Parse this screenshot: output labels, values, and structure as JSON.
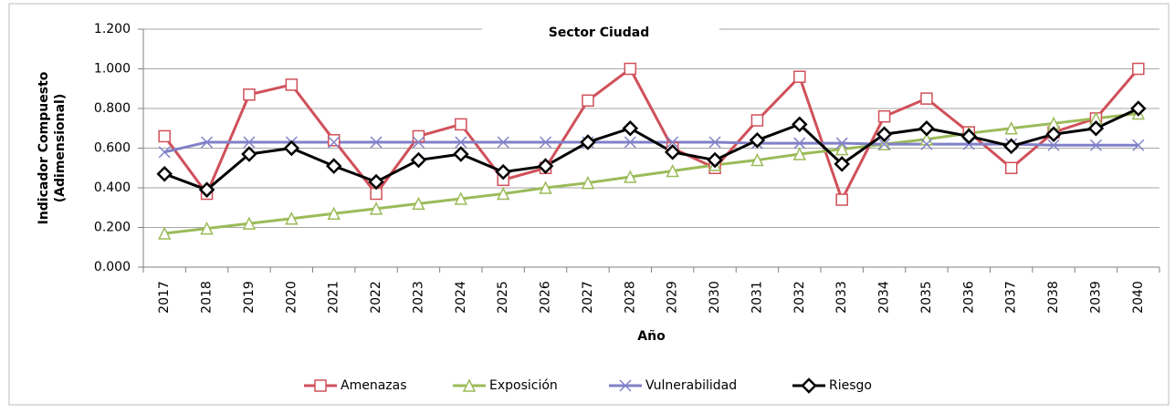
{
  "chart_data": {
    "type": "line",
    "title": "Sector Ciudad",
    "xlabel": "Año",
    "ylabel": [
      "Indicador Compuesto",
      "(Adimensional)"
    ],
    "categories": [
      "2017",
      "2018",
      "2019",
      "2020",
      "2021",
      "2022",
      "2023",
      "2024",
      "2025",
      "2026",
      "2027",
      "2028",
      "2029",
      "2030",
      "2031",
      "2032",
      "2033",
      "2034",
      "2035",
      "2036",
      "2037",
      "2038",
      "2039",
      "2040"
    ],
    "series": [
      {
        "name": "Amenazas",
        "color": "#d0505a",
        "marker": "square",
        "values": [
          0.66,
          0.37,
          0.87,
          0.92,
          0.64,
          0.37,
          0.66,
          0.72,
          0.44,
          0.5,
          0.84,
          1.0,
          0.6,
          0.5,
          0.74,
          0.96,
          0.34,
          0.76,
          0.85,
          0.68,
          0.5,
          0.68,
          0.75,
          1.0
        ]
      },
      {
        "name": "Exposición",
        "color": "#9bbb59",
        "marker": "triangle",
        "values": [
          0.17,
          0.195,
          0.22,
          0.245,
          0.27,
          0.295,
          0.32,
          0.345,
          0.37,
          0.4,
          0.425,
          0.455,
          0.485,
          0.515,
          0.54,
          0.57,
          0.595,
          0.62,
          0.645,
          0.675,
          0.7,
          0.725,
          0.75,
          0.775
        ]
      },
      {
        "name": "Vulnerabilidad",
        "color": "#8080c8",
        "marker": "x",
        "values": [
          0.58,
          0.63,
          0.63,
          0.63,
          0.63,
          0.63,
          0.63,
          0.63,
          0.63,
          0.63,
          0.63,
          0.63,
          0.63,
          0.63,
          0.625,
          0.625,
          0.625,
          0.62,
          0.62,
          0.62,
          0.62,
          0.615,
          0.615,
          0.615
        ]
      },
      {
        "name": "Riesgo",
        "color": "#000000",
        "marker": "diamond",
        "values": [
          0.47,
          0.39,
          0.57,
          0.6,
          0.51,
          0.43,
          0.54,
          0.57,
          0.48,
          0.51,
          0.63,
          0.7,
          0.58,
          0.54,
          0.64,
          0.72,
          0.52,
          0.67,
          0.7,
          0.66,
          0.61,
          0.67,
          0.7,
          0.8
        ]
      }
    ],
    "ylim": [
      0,
      1.2
    ],
    "yticks": [
      {
        "value": 0,
        "label": "0.000"
      },
      {
        "value": 0.2,
        "label": "0.200"
      },
      {
        "value": 0.4,
        "label": "0.400"
      },
      {
        "value": 0.6,
        "label": "0.600"
      },
      {
        "value": 0.8,
        "label": "0.800"
      },
      {
        "value": 1.0,
        "label": "1.000"
      },
      {
        "value": 1.2,
        "label": "1.200"
      }
    ],
    "grid": true,
    "legend": "bottom"
  }
}
